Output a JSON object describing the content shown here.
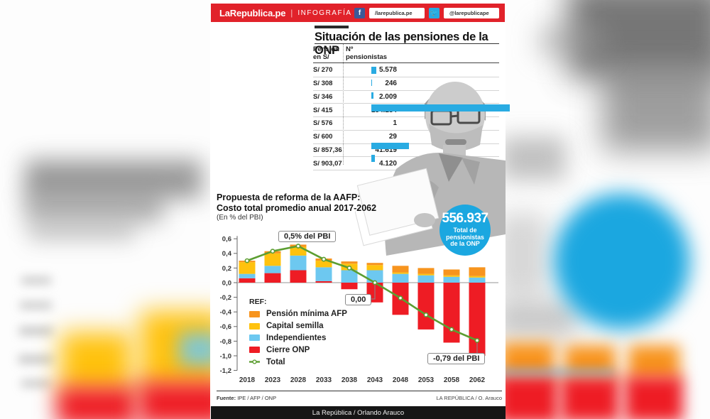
{
  "header": {
    "brand": "LaRepublica.pe",
    "divider": "|",
    "section": "INFOGRAFÍA",
    "facebook_handle": "/larepublica.pe",
    "twitter_handle": "@larepublicape"
  },
  "title": "Situación de las pensiones de la ONP",
  "pension_table": {
    "col_pension": "Pensión\nen S/",
    "col_count": "Nº\npensionistas",
    "bar_color": "#29abe2",
    "rows": [
      {
        "pension": "S/ 270",
        "count": "5.578",
        "value": 5578
      },
      {
        "pension": "S/ 308",
        "count": "246",
        "value": 246
      },
      {
        "pension": "S/ 346",
        "count": "2.009",
        "value": 2009
      },
      {
        "pension": "S/ 415",
        "count": "154.134",
        "value": 154134
      },
      {
        "pension": "S/ 576",
        "count": "1",
        "value": 1
      },
      {
        "pension": "S/ 600",
        "count": "29",
        "value": 29
      },
      {
        "pension": "S/ 857,36",
        "count": "41.619",
        "value": 41619
      },
      {
        "pension": "S/ 903,07",
        "count": "4.120",
        "value": 4120
      }
    ]
  },
  "badge": {
    "number": "556.937",
    "label": "Total de\npensionistas\nde la ONP",
    "color": "#1ba7e0"
  },
  "chart_data": {
    "type": "bar",
    "stacked": true,
    "title_line1": "Propuesta de reforma de la AAFP:",
    "title_line2": "Costo total promedio anual 2017-2062",
    "subtitle": "(En % del PBI)",
    "legend_title": "REF:",
    "legend_position": "inside-left",
    "grid": false,
    "categories": [
      "2018",
      "2023",
      "2028",
      "2033",
      "2038",
      "2043",
      "2048",
      "2053",
      "2058",
      "2062"
    ],
    "series": [
      {
        "name": "Pensión mínima AFP",
        "color": "#f7941e",
        "values": [
          0.02,
          0.03,
          0.03,
          0.03,
          0.03,
          0.03,
          0.09,
          0.08,
          0.08,
          0.12
        ]
      },
      {
        "name": "Capital semilla",
        "color": "#ffc20e",
        "values": [
          0.16,
          0.17,
          0.12,
          0.09,
          0.09,
          0.07,
          0.02,
          0.02,
          0.02,
          0.02
        ]
      },
      {
        "name": "Independientes",
        "color": "#6dc8f0",
        "values": [
          0.06,
          0.1,
          0.2,
          0.19,
          0.17,
          0.17,
          0.12,
          0.1,
          0.08,
          0.07
        ]
      },
      {
        "name": "Cierre ONP",
        "color": "#ee1c24",
        "values": [
          0.06,
          0.13,
          0.17,
          0.02,
          -0.09,
          -0.27,
          -0.44,
          -0.64,
          -0.82,
          -1.0
        ]
      }
    ],
    "line": {
      "name": "Total",
      "color": "#5c9e31",
      "values": [
        0.3,
        0.43,
        0.5,
        0.32,
        0.2,
        0.0,
        -0.21,
        -0.44,
        -0.64,
        -0.79
      ]
    },
    "ylim": [
      -1.2,
      0.6
    ],
    "ytick_labels": [
      "0,6",
      "0,4",
      "0,2",
      "0,0",
      "-0,2",
      "-0,4",
      "-0,6",
      "-0,8",
      "-1,0",
      "-1,2"
    ],
    "annotations": [
      "0,5% del PBI",
      "0,00",
      "-0,79  del PBI"
    ]
  },
  "footer": {
    "source_label": "Fuente:",
    "source_text": "IPE / AFP / ONP",
    "credit_right": "LA REPÚBLICA / O. Arauco",
    "credit_bar": "La República / Orlando Arauco"
  }
}
